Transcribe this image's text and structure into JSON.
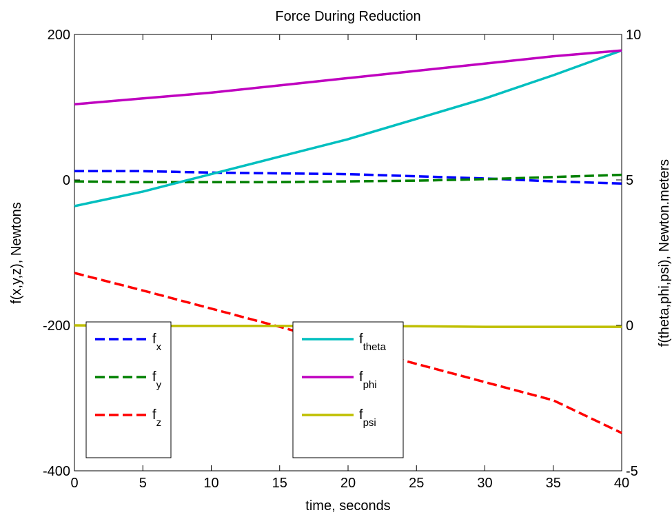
{
  "chart_data": {
    "type": "line",
    "title": "Force During Reduction",
    "xlabel": "time, seconds",
    "ylabel_left": "f(x,y,z), Newtons",
    "ylabel_right": "f(theta,phi,psi), Newton.meters",
    "xlim": [
      0,
      40
    ],
    "ylim_left": [
      -400,
      200
    ],
    "ylim_right": [
      -5,
      10
    ],
    "x_ticks": [
      "0",
      "5",
      "10",
      "15",
      "20",
      "25",
      "30",
      "35",
      "40"
    ],
    "y_ticks_left": [
      "-400",
      "-200",
      "0",
      "200"
    ],
    "y_ticks_right": [
      "-5",
      "0",
      "5",
      "10"
    ],
    "grid": false,
    "x": [
      0,
      5,
      10,
      15,
      20,
      25,
      30,
      35,
      40
    ],
    "series": [
      {
        "name": "f",
        "sub": "x",
        "axis": "left",
        "color": "#0000ff",
        "dash": true,
        "values": [
          12,
          12,
          10,
          9,
          8,
          5,
          2,
          -2,
          -5
        ]
      },
      {
        "name": "f",
        "sub": "y",
        "axis": "left",
        "color": "#008000",
        "dash": true,
        "values": [
          -2,
          -3,
          -3,
          -3,
          -2,
          -1,
          1,
          4,
          7
        ]
      },
      {
        "name": "f",
        "sub": "z",
        "axis": "left",
        "color": "#ff0000",
        "dash": true,
        "values": [
          -128,
          -152,
          -177,
          -202,
          -228,
          -253,
          -278,
          -303,
          -348
        ]
      },
      {
        "name": "f",
        "sub": "theta",
        "axis": "right",
        "color": "#00bfbf",
        "dash": false,
        "values": [
          4.1,
          4.6,
          5.2,
          5.8,
          6.4,
          7.1,
          7.8,
          8.6,
          9.45
        ]
      },
      {
        "name": "f",
        "sub": "phi",
        "axis": "right",
        "color": "#bf00bf",
        "dash": false,
        "values": [
          7.6,
          7.8,
          8.0,
          8.25,
          8.5,
          8.75,
          9.0,
          9.25,
          9.45
        ]
      },
      {
        "name": "f",
        "sub": "psi",
        "axis": "right",
        "color": "#bfbf00",
        "dash": false,
        "values": [
          0.0,
          -0.02,
          -0.02,
          -0.02,
          -0.03,
          -0.03,
          -0.05,
          -0.05,
          -0.05
        ]
      }
    ]
  }
}
